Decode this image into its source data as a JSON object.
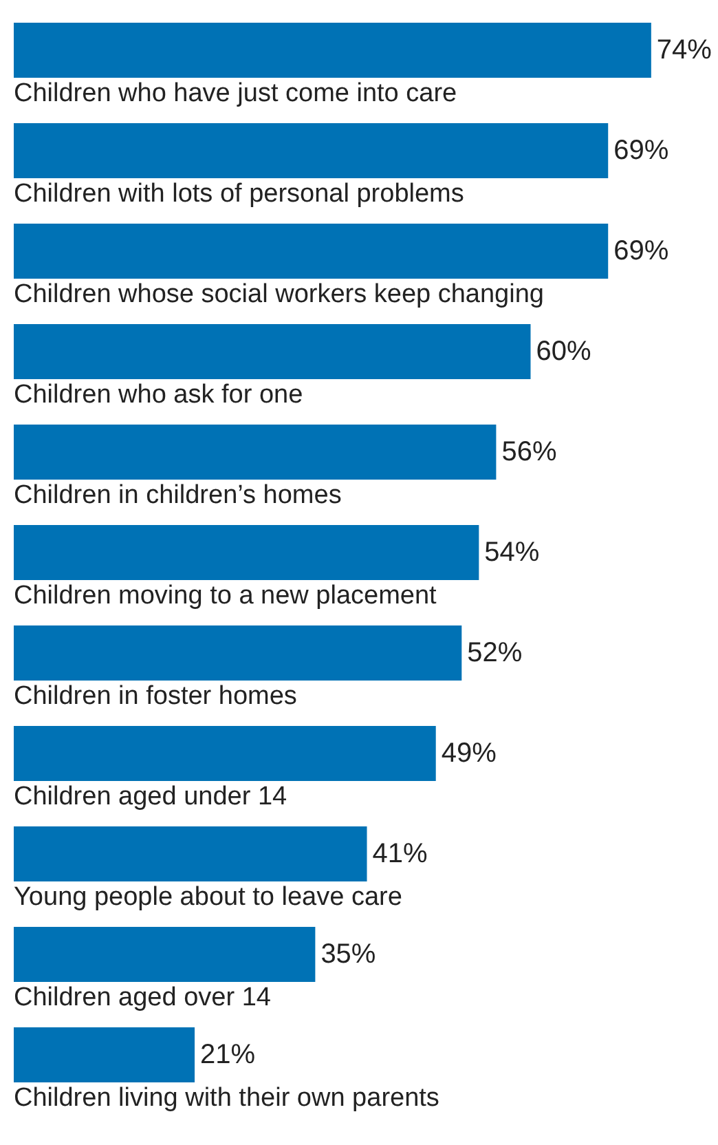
{
  "chart_data": {
    "type": "bar",
    "orientation": "horizontal",
    "categories": [
      "Children who have just come into care",
      "Children with lots of personal problems",
      "Children whose social workers keep changing",
      "Children who ask for one",
      "Children in children’s homes",
      "Children moving to a new placement",
      "Children in foster homes",
      "Children aged under 14",
      "Young people about to leave care",
      "Children aged over 14",
      "Children living with their own parents"
    ],
    "values": [
      74,
      69,
      69,
      60,
      56,
      54,
      52,
      49,
      41,
      35,
      21
    ],
    "value_labels": [
      "74%",
      "69%",
      "69%",
      "60%",
      "56%",
      "54%",
      "52%",
      "49%",
      "41%",
      "35%",
      "21%"
    ],
    "color": "#0072b5"
  }
}
